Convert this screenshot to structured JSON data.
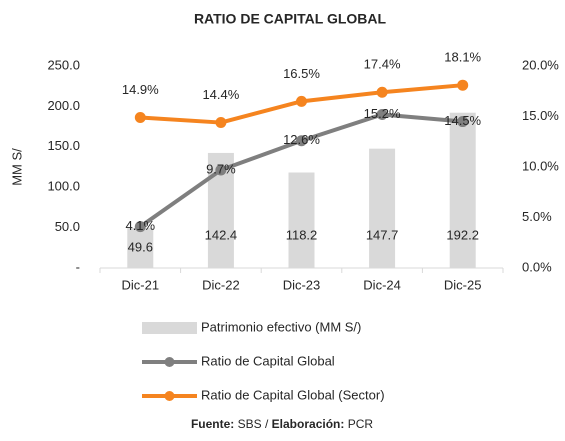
{
  "chart_data": {
    "type": "bar",
    "title": "RATIO DE CAPITAL GLOBAL",
    "ylabel": "MM S/",
    "categories": [
      "Dic-21",
      "Dic-22",
      "Dic-23",
      "Dic-24",
      "Dic-25"
    ],
    "series": [
      {
        "name": "Patrimonio efectivo (MM S/)",
        "type": "bar",
        "axis": "y",
        "color": "#d9d9d9",
        "values": [
          49.6,
          142.4,
          118.2,
          147.7,
          192.2
        ]
      },
      {
        "name": "Ratio de Capital Global",
        "type": "line",
        "axis": "y2",
        "color": "#7f7f7f",
        "values": [
          4.1,
          9.7,
          12.6,
          15.2,
          14.5
        ],
        "value_labels": [
          "4.1%",
          "9.7%",
          "12.6%",
          "15.2%",
          "14.5%"
        ]
      },
      {
        "name": "Ratio de Capital Global (Sector)",
        "type": "line",
        "axis": "y2",
        "color": "#f5841f",
        "values": [
          14.9,
          14.4,
          16.5,
          17.4,
          18.1
        ],
        "value_labels": [
          "14.9%",
          "14.4%",
          "16.5%",
          "17.4%",
          "18.1%"
        ]
      }
    ],
    "ylim": [
      0,
      250
    ],
    "yticks": [
      {
        "value": 0,
        "label": "-"
      },
      {
        "value": 50,
        "label": "50.0"
      },
      {
        "value": 100,
        "label": "100.0"
      },
      {
        "value": 150,
        "label": "150.0"
      },
      {
        "value": 200,
        "label": "200.0"
      },
      {
        "value": 250,
        "label": "250.0"
      }
    ],
    "y2lim": [
      0,
      20
    ],
    "y2ticks": [
      {
        "value": 0,
        "label": "0.0%"
      },
      {
        "value": 5,
        "label": "5.0%"
      },
      {
        "value": 10,
        "label": "10.0%"
      },
      {
        "value": 15,
        "label": "15.0%"
      },
      {
        "value": 20,
        "label": "20.0%"
      }
    ],
    "legend": "bottom",
    "footnote": {
      "parts": [
        "Fuente:",
        " SBS / ",
        "Elaboración:",
        " PCR"
      ]
    }
  }
}
